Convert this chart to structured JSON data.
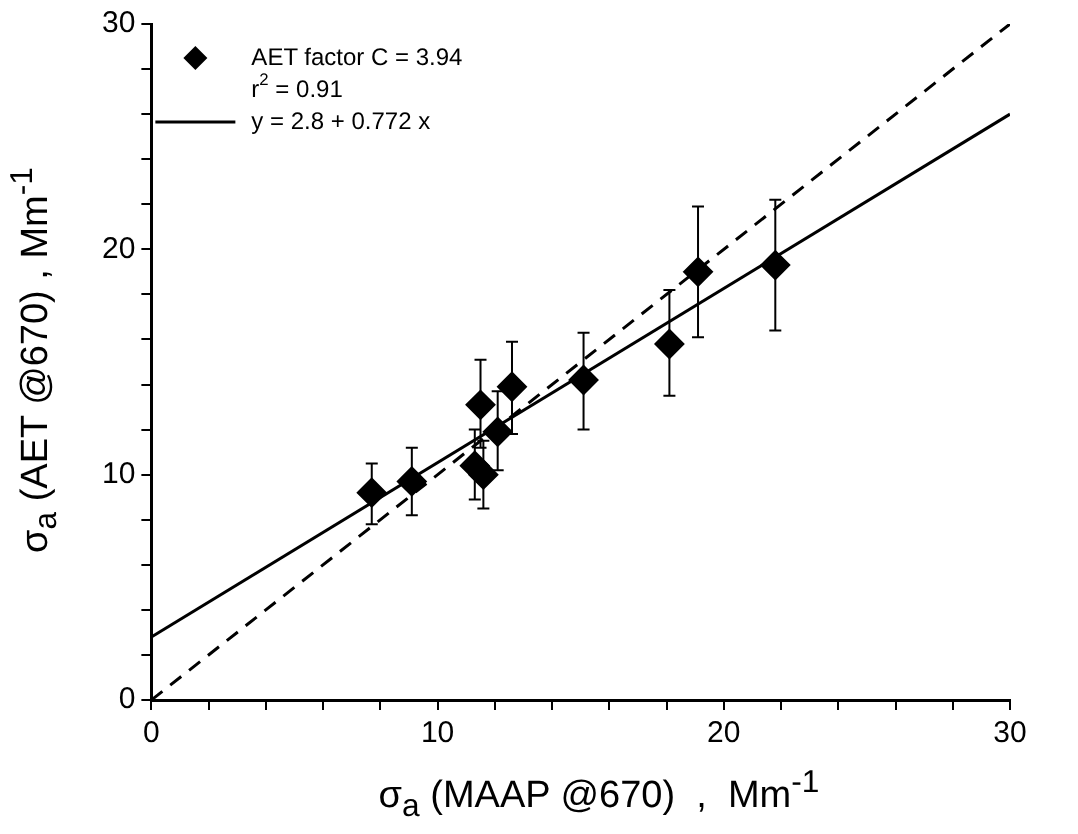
{
  "chart_data": {
    "type": "scatter",
    "xlabel": "σ$_{a}$ (MAAP @670)  ,  Mm$^{-1}$",
    "ylabel": "σ$_{a}$ (AET @670)  ,  Mm$^{-1}$",
    "xlim": [
      0,
      30
    ],
    "ylim": [
      0,
      30
    ],
    "xticks": [
      0,
      {
        "value": 2,
        "label": null
      },
      {
        "value": 4,
        "label": null
      },
      {
        "value": 6,
        "label": null
      },
      {
        "value": 8,
        "label": null
      },
      10,
      {
        "value": 12,
        "label": null
      },
      {
        "value": 14,
        "label": null
      },
      {
        "value": 16,
        "label": null
      },
      {
        "value": 18,
        "label": null
      },
      20,
      {
        "value": 22,
        "label": null
      },
      {
        "value": 24,
        "label": null
      },
      {
        "value": 26,
        "label": null
      },
      {
        "value": 28,
        "label": null
      },
      30
    ],
    "yticks": [
      0,
      {
        "value": 2,
        "label": null
      },
      {
        "value": 4,
        "label": null
      },
      {
        "value": 6,
        "label": null
      },
      {
        "value": 8,
        "label": null
      },
      10,
      {
        "value": 12,
        "label": null
      },
      {
        "value": 14,
        "label": null
      },
      {
        "value": 16,
        "label": null
      },
      {
        "value": 18,
        "label": null
      },
      20,
      {
        "value": 22,
        "label": null
      },
      {
        "value": 24,
        "label": null
      },
      {
        "value": 26,
        "label": null
      },
      {
        "value": 28,
        "label": null
      },
      30
    ],
    "grid": false,
    "legend": "top left",
    "annotations": [
      "r$^{2}$ = 0.91"
    ],
    "series": [
      {
        "name": "AET factor C = 3.94",
        "type": "scatter",
        "color": "#000000",
        "marker": "diamond",
        "x": [
          7.7,
          9.1,
          11.3,
          11.6,
          11.5,
          12.1,
          12.6,
          15.1,
          18.1,
          19.1,
          21.8
        ],
        "values": [
          9.2,
          9.7,
          10.4,
          10.0,
          13.1,
          11.9,
          13.9,
          14.2,
          15.8,
          19.0,
          19.3
        ],
        "errors": [
          [
            7.8,
            10.5
          ],
          [
            8.2,
            11.2
          ],
          [
            8.9,
            12.0
          ],
          [
            8.5,
            11.5
          ],
          [
            11.2,
            15.1
          ],
          [
            10.2,
            13.7
          ],
          [
            11.8,
            15.9
          ],
          [
            12.0,
            16.3
          ],
          [
            13.5,
            18.2
          ],
          [
            16.1,
            21.9
          ],
          [
            16.4,
            22.2
          ]
        ]
      },
      {
        "name": "y = 2.8 + 0.772 x",
        "type": "line",
        "color": "#000000",
        "marker": "none",
        "line_style": "solid",
        "x": [
          0,
          30
        ],
        "values": [
          2.8,
          26
        ]
      },
      {
        "type": "line",
        "color": "#000000",
        "marker": "none",
        "line_style": "dashed",
        "x": [
          0,
          30
        ],
        "values": [
          0,
          30
        ]
      }
    ]
  }
}
